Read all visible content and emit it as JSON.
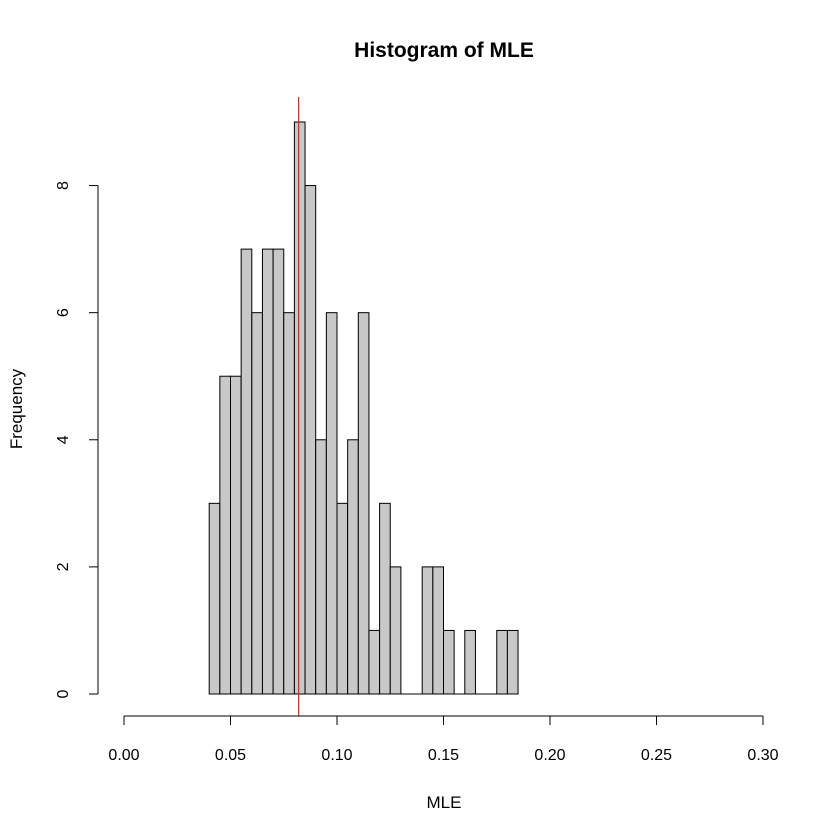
{
  "chart_data": {
    "type": "histogram",
    "title": "Histogram of MLE",
    "xlabel": "MLE",
    "ylabel": "Frequency",
    "xlim": [
      0,
      0.3
    ],
    "ylim": [
      0,
      9
    ],
    "x_ticks": [
      "0.00",
      "0.05",
      "0.10",
      "0.15",
      "0.20",
      "0.25",
      "0.30"
    ],
    "y_ticks": [
      "0",
      "2",
      "4",
      "6",
      "8"
    ],
    "bin_width": 0.005,
    "bin_starts": [
      0.04,
      0.045,
      0.05,
      0.055,
      0.06,
      0.065,
      0.07,
      0.075,
      0.08,
      0.085,
      0.09,
      0.095,
      0.1,
      0.105,
      0.11,
      0.115,
      0.12,
      0.125,
      0.13,
      0.135,
      0.14,
      0.145,
      0.15,
      0.155,
      0.16,
      0.165,
      0.17,
      0.175,
      0.18
    ],
    "counts": [
      3,
      5,
      5,
      7,
      6,
      7,
      7,
      6,
      9,
      8,
      4,
      6,
      3,
      4,
      6,
      1,
      3,
      2,
      0,
      0,
      2,
      2,
      1,
      0,
      1,
      0,
      0,
      1,
      1
    ],
    "bar_color": "#c8c8c8",
    "reference_line": {
      "x": 0.082,
      "color": "#e0201b"
    }
  }
}
